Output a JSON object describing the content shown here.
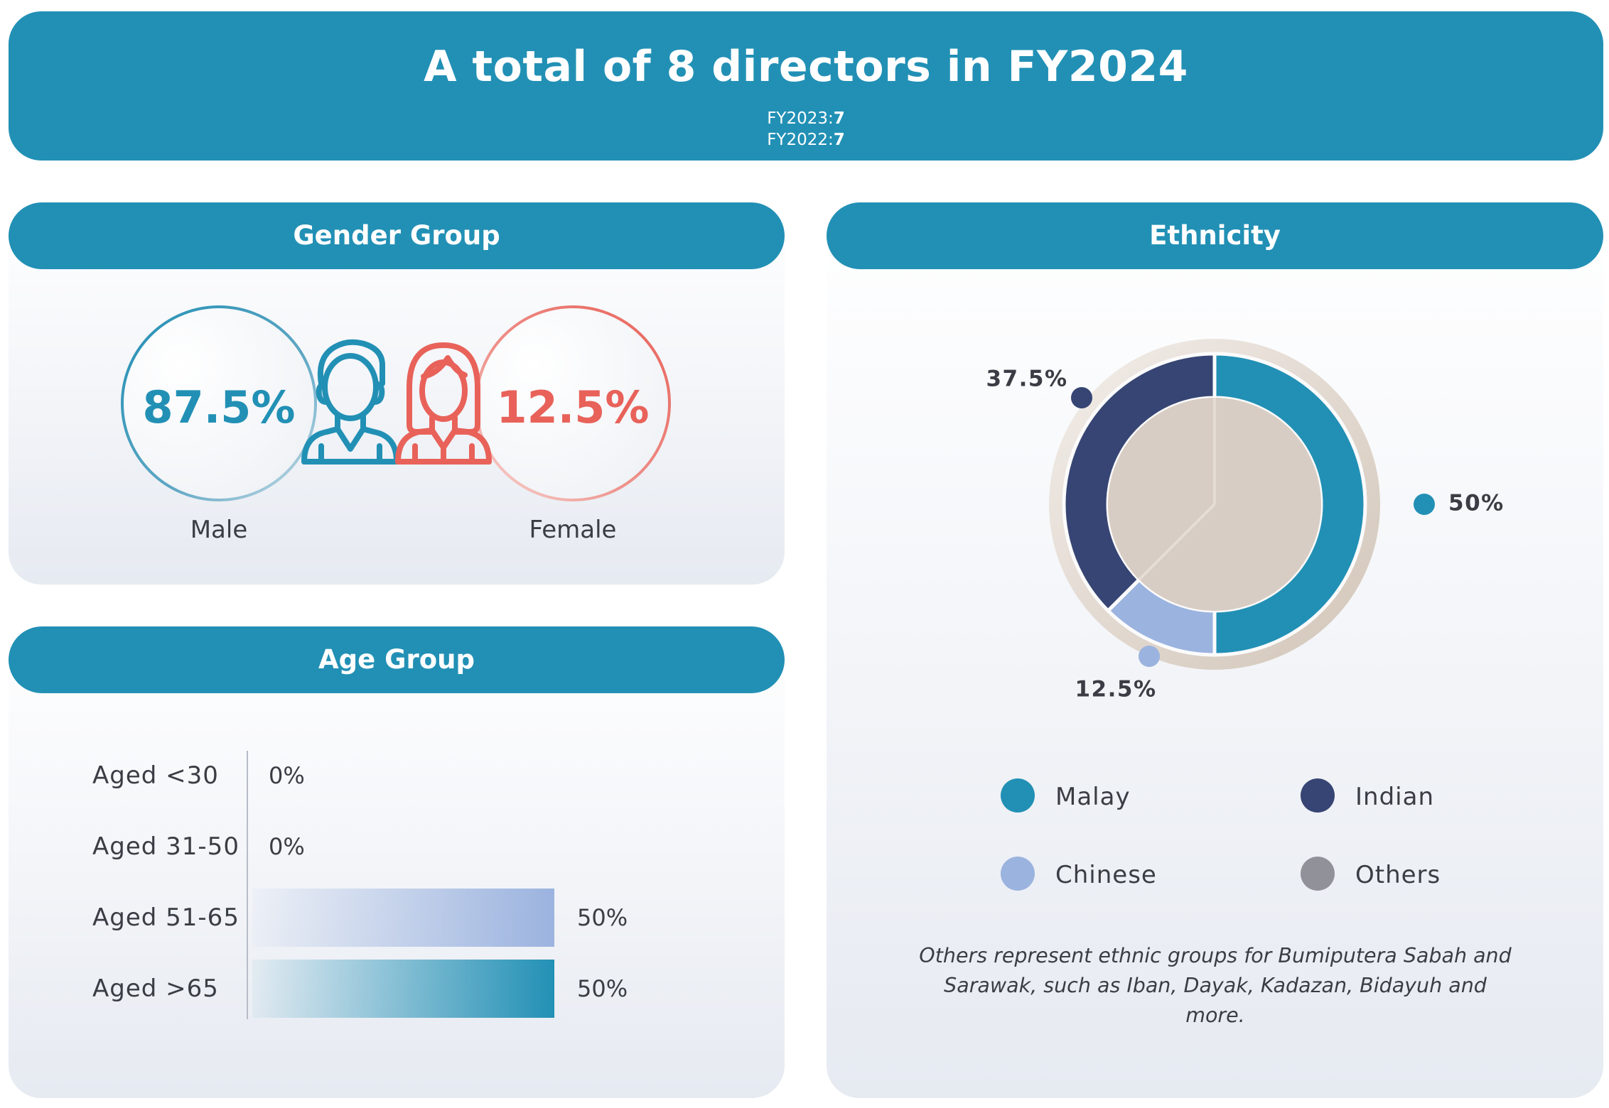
{
  "header": {
    "title": "A total of 8 directors in FY2024",
    "fy2023_label": "FY2023:",
    "fy2023_value": "7",
    "fy2022_label": "FY2022:",
    "fy2022_value": "7"
  },
  "gender": {
    "title": "Gender Group",
    "male_value": "87.5%",
    "male_label": "Male",
    "female_value": "12.5%",
    "female_label": "Female"
  },
  "age": {
    "title": "Age Group",
    "rows": [
      {
        "label": "Aged <30",
        "value": "0%",
        "share": 0
      },
      {
        "label": "Aged 31-50",
        "value": "0%",
        "share": 0
      },
      {
        "label": "Aged 51-65",
        "value": "50%",
        "share": 0.5
      },
      {
        "label": "Aged >65",
        "value": "50%",
        "share": 0.5
      }
    ]
  },
  "ethnicity": {
    "title": "Ethnicity",
    "legend": {
      "malay": "Malay",
      "indian": "Indian",
      "chinese": "Chinese",
      "others": "Others"
    },
    "note_line1": "Others represent ethnic groups for Bumiputera Sabah and",
    "note_line2": "Sarawak, such as Iban, Dayak, Kadazan, Bidayuh and more."
  },
  "colors": {
    "primary": "#2290b5",
    "navy": "#364573",
    "light_blue": "#9bb3df",
    "grey": "#919299",
    "female_red": "#e8625a"
  },
  "chart_data": [
    {
      "type": "pie",
      "categories": [
        "Male",
        "Female"
      ],
      "values": [
        87.5,
        12.5
      ],
      "labels": [
        "87.5%",
        "12.5%"
      ]
    },
    {
      "type": "bar",
      "categories": [
        "Aged <30",
        "Aged 31-50",
        "Aged 51-65",
        "Aged >65"
      ],
      "values": [
        0,
        0,
        50,
        50
      ],
      "labels": [
        "0%",
        "0%",
        "50%",
        "50%"
      ]
    },
    {
      "type": "pie",
      "categories": [
        "Malay",
        "Chinese",
        "Indian",
        "Others"
      ],
      "values": [
        50,
        12.5,
        37.5,
        0
      ],
      "labels": [
        "50%",
        "12.5%",
        "37.5%"
      ],
      "colors": [
        "#2290b5",
        "#9bb3df",
        "#364573",
        "#919299"
      ]
    }
  ]
}
